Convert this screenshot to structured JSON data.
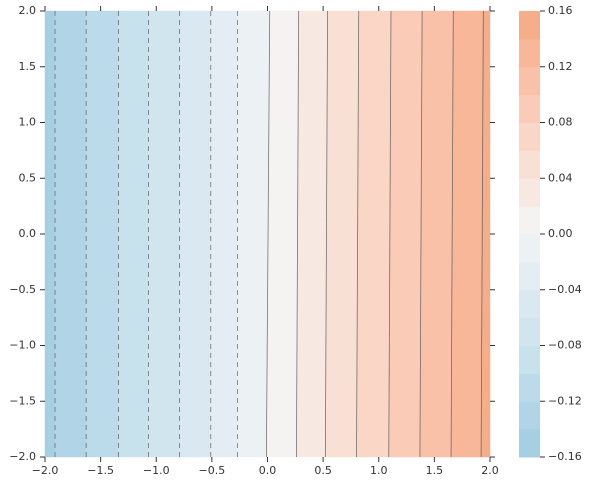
{
  "chart_data": {
    "type": "contour",
    "xlim": [
      -2,
      2
    ],
    "ylim": [
      -2,
      2
    ],
    "xticks": [
      {
        "value": -2,
        "label": "−2.0"
      },
      {
        "value": -1.5,
        "label": "−1.5"
      },
      {
        "value": -1,
        "label": "−1.0"
      },
      {
        "value": -0.5,
        "label": "−0.5"
      },
      {
        "value": 0,
        "label": "0.0"
      },
      {
        "value": 0.5,
        "label": "0.5"
      },
      {
        "value": 1,
        "label": "1.0"
      },
      {
        "value": 1.5,
        "label": "1.5"
      },
      {
        "value": 2,
        "label": "2.0"
      }
    ],
    "yticks": [
      {
        "value": -2,
        "label": "−2.0"
      },
      {
        "value": -1.5,
        "label": "−1.5"
      },
      {
        "value": -1,
        "label": "−1.0"
      },
      {
        "value": -0.5,
        "label": "−0.5"
      },
      {
        "value": 0,
        "label": "0.0"
      },
      {
        "value": 0.5,
        "label": "0.5"
      },
      {
        "value": 1,
        "label": "1.0"
      },
      {
        "value": 1.5,
        "label": "1.5"
      },
      {
        "value": 2,
        "label": "2.0"
      }
    ],
    "negative_linestyle": "dashed",
    "line_color": "#555555",
    "contours": [
      {
        "level": -0.14,
        "x": [
          -1.91,
          -1.91
        ],
        "y": [
          -2,
          2
        ]
      },
      {
        "level": -0.12,
        "x": [
          -1.63,
          -1.63
        ],
        "y": [
          -2,
          2
        ]
      },
      {
        "level": -0.1,
        "x": [
          -1.34,
          -1.34
        ],
        "y": [
          -2,
          2
        ]
      },
      {
        "level": -0.08,
        "x": [
          -1.07,
          -1.07
        ],
        "y": [
          -2,
          2
        ]
      },
      {
        "level": -0.06,
        "x": [
          -0.79,
          -0.79
        ],
        "y": [
          -2,
          2
        ]
      },
      {
        "level": -0.04,
        "x": [
          -0.51,
          -0.51
        ],
        "y": [
          -2,
          2
        ]
      },
      {
        "level": -0.02,
        "x": [
          -0.27,
          -0.27
        ],
        "y": [
          -2,
          2
        ]
      },
      {
        "level": 0,
        "x": [
          -0.01,
          0.02
        ],
        "y": [
          -2,
          2
        ]
      },
      {
        "level": 0.02,
        "x": [
          0.26,
          0.28
        ],
        "y": [
          -2,
          2
        ]
      },
      {
        "level": 0.04,
        "x": [
          0.52,
          0.54
        ],
        "y": [
          -2,
          2
        ]
      },
      {
        "level": 0.06,
        "x": [
          0.8,
          0.82
        ],
        "y": [
          -2,
          2
        ]
      },
      {
        "level": 0.08,
        "x": [
          1.09,
          1.11
        ],
        "y": [
          -2,
          2
        ]
      },
      {
        "level": 0.1,
        "x": [
          1.37,
          1.39
        ],
        "y": [
          -2,
          2
        ]
      },
      {
        "level": 0.12,
        "x": [
          1.65,
          1.67
        ],
        "y": [
          -2,
          2
        ]
      },
      {
        "level": 0.14,
        "x": [
          1.92,
          1.94
        ],
        "y": [
          -2,
          2
        ]
      }
    ],
    "colorbar": {
      "levels": [
        -0.16,
        -0.14,
        -0.12,
        -0.1,
        -0.08,
        -0.06,
        -0.04,
        -0.02,
        0,
        0.02,
        0.04,
        0.06,
        0.08,
        0.1,
        0.12,
        0.14,
        0.16
      ],
      "colors": [
        "#a6cfe2",
        "#b1d5e6",
        "#bcdbea",
        "#c7e1ed",
        "#d1e5ef",
        "#dae9f1",
        "#e3edf3",
        "#ecf1f4",
        "#f5f3f2",
        "#f7e9e2",
        "#f8e0d4",
        "#f9d6c5",
        "#facbb6",
        "#f9c1a7",
        "#f8b798",
        "#f6ad8a"
      ],
      "ticks": [
        {
          "value": -0.16,
          "label": "−0.16"
        },
        {
          "value": -0.12,
          "label": "−0.12"
        },
        {
          "value": -0.08,
          "label": "−0.08"
        },
        {
          "value": -0.04,
          "label": "−0.04"
        },
        {
          "value": 0,
          "label": "0.00"
        },
        {
          "value": 0.04,
          "label": "0.04"
        },
        {
          "value": 0.08,
          "label": "0.08"
        },
        {
          "value": 0.12,
          "label": "0.12"
        },
        {
          "value": 0.16,
          "label": "0.16"
        }
      ]
    }
  }
}
